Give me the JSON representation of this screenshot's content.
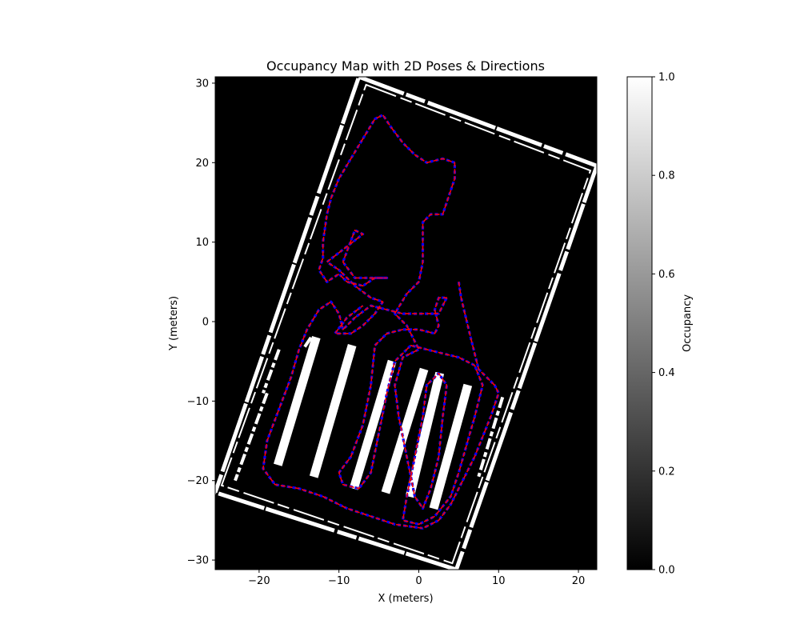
{
  "chart_data": {
    "type": "heatmap",
    "title": "Occupancy Map with 2D Poses & Directions",
    "xlabel": "X (meters)",
    "ylabel": "Y (meters)",
    "xlim": [
      -25.5,
      22.3
    ],
    "ylim": [
      -31.2,
      30.8
    ],
    "xticks": [
      -20,
      -10,
      0,
      10,
      20
    ],
    "yticks": [
      -30,
      -20,
      -10,
      0,
      10,
      20,
      30
    ],
    "colorbar": {
      "label": "Occupancy",
      "range": [
        0.0,
        1.0
      ],
      "ticks": [
        0.0,
        0.2,
        0.4,
        0.6,
        0.8,
        1.0
      ],
      "tick_labels": [
        "0.0",
        "0.2",
        "0.4",
        "0.6",
        "0.8",
        "1.0"
      ],
      "colormap": "gray"
    },
    "colors": {
      "background": "#000000",
      "occupied": "#ffffff",
      "trajectory": "#ff0000",
      "direction_arrows": "#0000ff"
    },
    "boundary_outer": [
      [
        -7.5,
        30.8
      ],
      [
        22.3,
        19.6
      ],
      [
        4.7,
        -31.2
      ],
      [
        -25.5,
        -21.5
      ]
    ],
    "boundary_inner": [
      [
        -6.6,
        29.8
      ],
      [
        21.5,
        19.0
      ],
      [
        4.2,
        -30.4
      ],
      [
        -24.7,
        -20.6
      ]
    ],
    "row_obstacles": [
      {
        "from": [
          -13.0,
          -2.5
        ],
        "to": [
          -17.5,
          -17.5
        ]
      },
      {
        "from": [
          -8.5,
          -3.5
        ],
        "to": [
          -13.0,
          -19.0
        ]
      },
      {
        "from": [
          -3.5,
          -5.5
        ],
        "to": [
          -8.0,
          -20.5
        ]
      },
      {
        "from": [
          0.5,
          -6.5
        ],
        "to": [
          -4.0,
          -21.0
        ]
      },
      {
        "from": [
          2.5,
          -7.0
        ],
        "to": [
          -1.0,
          -21.5
        ]
      },
      {
        "from": [
          6.0,
          -8.5
        ],
        "to": [
          2.0,
          -23.0
        ]
      }
    ],
    "wall_fragments": [
      {
        "from": [
          -19.0,
          -9.0
        ],
        "to": [
          -23.0,
          -20.0
        ]
      },
      {
        "from": [
          -17.5,
          -3.5
        ],
        "to": [
          -19.5,
          -9.0
        ]
      },
      {
        "from": [
          -13.5,
          -2.0
        ],
        "to": [
          -14.5,
          -3.5
        ]
      },
      {
        "from": [
          10.5,
          -9.5
        ],
        "to": [
          7.5,
          -19.5
        ]
      }
    ],
    "trajectory": [
      [
        5.0,
        5.0
      ],
      [
        5.3,
        3.0
      ],
      [
        6.5,
        -2.0
      ],
      [
        7.5,
        -6.0
      ],
      [
        9.5,
        -8.0
      ],
      [
        10.0,
        -9.0
      ],
      [
        9.0,
        -12.0
      ],
      [
        7.0,
        -17.0
      ],
      [
        5.5,
        -20.0
      ],
      [
        4.0,
        -23.0
      ],
      [
        2.5,
        -25.0
      ],
      [
        0.5,
        -26.0
      ],
      [
        -3.0,
        -25.5
      ],
      [
        -6.0,
        -24.5
      ],
      [
        -9.0,
        -23.5
      ],
      [
        -12.0,
        -22.0
      ],
      [
        -15.0,
        -21.0
      ],
      [
        -18.0,
        -20.5
      ],
      [
        -19.5,
        -18.5
      ],
      [
        -19.0,
        -15.0
      ],
      [
        -17.5,
        -11.0
      ],
      [
        -16.0,
        -7.0
      ],
      [
        -15.0,
        -3.5
      ],
      [
        -14.0,
        -1.0
      ],
      [
        -12.5,
        1.5
      ],
      [
        -11.0,
        2.5
      ],
      [
        -10.0,
        1.0
      ],
      [
        -9.5,
        -1.0
      ],
      [
        -8.0,
        0.5
      ],
      [
        -6.0,
        2.0
      ],
      [
        -4.0,
        1.5
      ],
      [
        -2.0,
        1.0
      ],
      [
        0.5,
        1.0
      ],
      [
        2.5,
        1.0
      ],
      [
        3.0,
        2.0
      ],
      [
        3.5,
        3.0
      ],
      [
        2.5,
        3.0
      ],
      [
        2.0,
        1.5
      ],
      [
        2.5,
        -0.5
      ],
      [
        2.0,
        -1.5
      ],
      [
        0.0,
        -1.0
      ],
      [
        -2.0,
        -1.0
      ],
      [
        -4.0,
        -1.5
      ],
      [
        -5.5,
        -3.0
      ],
      [
        -6.0,
        -8.0
      ],
      [
        -7.0,
        -13.0
      ],
      [
        -8.5,
        -17.0
      ],
      [
        -10.0,
        -19.0
      ],
      [
        -9.5,
        -20.5
      ],
      [
        -7.5,
        -21.0
      ],
      [
        -6.0,
        -19.0
      ],
      [
        -5.0,
        -14.0
      ],
      [
        -4.0,
        -9.0
      ],
      [
        -3.0,
        -5.0
      ],
      [
        -1.0,
        -3.0
      ],
      [
        1.0,
        -3.5
      ],
      [
        3.0,
        -4.0
      ],
      [
        5.0,
        -4.5
      ],
      [
        7.0,
        -5.5
      ],
      [
        8.0,
        -8.0
      ],
      [
        7.0,
        -12.0
      ],
      [
        6.0,
        -15.5
      ],
      [
        5.0,
        -19.0
      ],
      [
        4.0,
        -22.0
      ],
      [
        2.0,
        -24.5
      ],
      [
        0.0,
        -25.5
      ],
      [
        -2.0,
        -25.0
      ],
      [
        -1.5,
        -22.0
      ],
      [
        -0.5,
        -17.0
      ],
      [
        0.5,
        -12.0
      ],
      [
        1.0,
        -8.0
      ],
      [
        2.5,
        -6.5
      ],
      [
        3.5,
        -8.0
      ],
      [
        3.0,
        -12.0
      ],
      [
        2.5,
        -17.0
      ],
      [
        1.5,
        -21.0
      ],
      [
        0.5,
        -23.5
      ],
      [
        -0.5,
        -22.0
      ],
      [
        -1.5,
        -17.0
      ],
      [
        -2.5,
        -12.0
      ],
      [
        -3.0,
        -8.0
      ],
      [
        -2.0,
        -4.5
      ],
      [
        0.0,
        -3.5
      ],
      [
        -1.5,
        -0.5
      ],
      [
        -3.0,
        1.0
      ],
      [
        -1.5,
        3.5
      ],
      [
        0.0,
        5.0
      ],
      [
        0.5,
        7.5
      ],
      [
        0.5,
        10.0
      ],
      [
        0.5,
        12.5
      ],
      [
        1.5,
        13.5
      ],
      [
        3.0,
        13.5
      ],
      [
        3.5,
        15.0
      ],
      [
        4.5,
        18.0
      ],
      [
        4.5,
        20.0
      ],
      [
        3.0,
        20.5
      ],
      [
        1.0,
        20.0
      ],
      [
        -0.5,
        21.0
      ],
      [
        -2.0,
        22.5
      ],
      [
        -3.5,
        24.5
      ],
      [
        -4.5,
        26.0
      ],
      [
        -5.5,
        25.5
      ],
      [
        -7.0,
        23.0
      ],
      [
        -8.5,
        20.5
      ],
      [
        -10.0,
        18.0
      ],
      [
        -11.0,
        15.5
      ],
      [
        -11.5,
        13.5
      ],
      [
        -12.0,
        10.0
      ],
      [
        -12.0,
        8.0
      ],
      [
        -12.5,
        6.5
      ],
      [
        -11.5,
        5.0
      ],
      [
        -10.0,
        6.0
      ],
      [
        -9.0,
        5.0
      ],
      [
        -7.0,
        4.5
      ],
      [
        -5.5,
        5.5
      ],
      [
        -4.0,
        5.5
      ],
      [
        -8.0,
        5.5
      ],
      [
        -9.5,
        7.5
      ],
      [
        -8.0,
        11.5
      ],
      [
        -7.0,
        11.0
      ],
      [
        -11.5,
        7.5
      ],
      [
        -10.0,
        6.5
      ],
      [
        -8.0,
        4.5
      ],
      [
        -6.0,
        3.0
      ],
      [
        -4.5,
        2.5
      ],
      [
        -5.5,
        1.0
      ],
      [
        -7.0,
        -0.5
      ],
      [
        -8.5,
        -1.5
      ],
      [
        -10.5,
        -1.5
      ],
      [
        -9.0,
        0.5
      ],
      [
        -7.0,
        2.0
      ]
    ]
  }
}
